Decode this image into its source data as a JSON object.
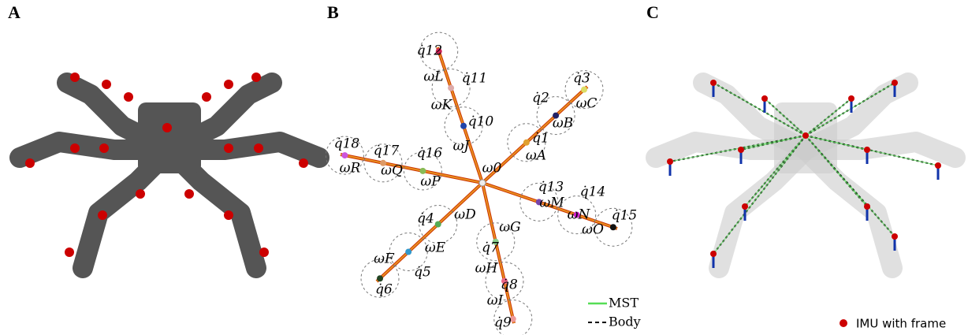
{
  "panel_labels": [
    "A",
    "B",
    "C"
  ],
  "graph": {
    "root": "ω0",
    "joints": [
      "q̇1",
      "q̇2",
      "q̇3",
      "q̇4",
      "q̇5",
      "q̇6",
      "q̇7",
      "q̇8",
      "q̇9",
      "q̇10",
      "q̇11",
      "q̇12",
      "q̇13",
      "q̇14",
      "q̇15",
      "q̇16",
      "q̇17",
      "q̇18"
    ],
    "links": [
      "ωA",
      "ωB",
      "ωC",
      "ωD",
      "ωE",
      "ωF",
      "ωG",
      "ωH",
      "ωI",
      "ωJ",
      "ωK",
      "ωL",
      "ωM",
      "ωN",
      "ωO",
      "ωP",
      "ωQ",
      "ωR"
    ],
    "legend": [
      "MST",
      "Body"
    ]
  },
  "panel_c": {
    "legend": "IMU with frame"
  }
}
